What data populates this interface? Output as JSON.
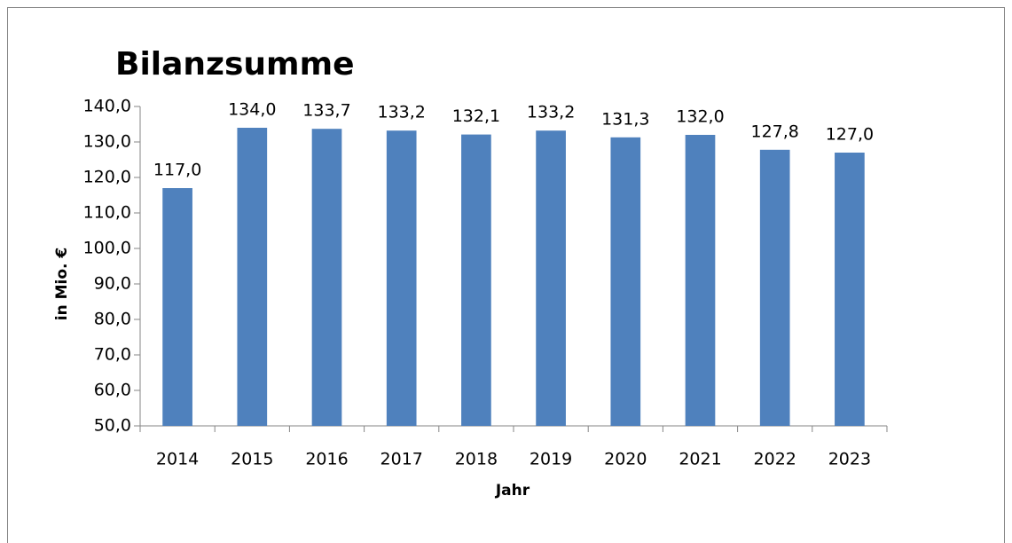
{
  "chart_data": {
    "type": "bar",
    "title": "Bilanzsumme",
    "x_label": "Jahr",
    "y_label": "in Mio. €",
    "categories": [
      "2014",
      "2015",
      "2016",
      "2017",
      "2018",
      "2019",
      "2020",
      "2021",
      "2022",
      "2023"
    ],
    "values": [
      117.0,
      134.0,
      133.7,
      133.2,
      132.1,
      133.2,
      131.3,
      132.0,
      127.8,
      127.0
    ],
    "value_labels": [
      "117,0",
      "134,0",
      "133,7",
      "133,2",
      "132,1",
      "133,2",
      "131,3",
      "132,0",
      "127,8",
      "127,0"
    ],
    "color": "#4f81bd",
    "ylim": [
      50,
      140
    ],
    "yticks": [
      {
        "value": 50,
        "label": "50,0"
      },
      {
        "value": 60,
        "label": "60,0"
      },
      {
        "value": 70,
        "label": "70,0"
      },
      {
        "value": 80,
        "label": "80,0"
      },
      {
        "value": 90,
        "label": "90,0"
      },
      {
        "value": 100,
        "label": "100,0"
      },
      {
        "value": 110,
        "label": "110,0"
      },
      {
        "value": 120,
        "label": "120,0"
      },
      {
        "value": 130,
        "label": "130,0"
      },
      {
        "value": 140,
        "label": "140,0"
      }
    ],
    "grid": false
  }
}
